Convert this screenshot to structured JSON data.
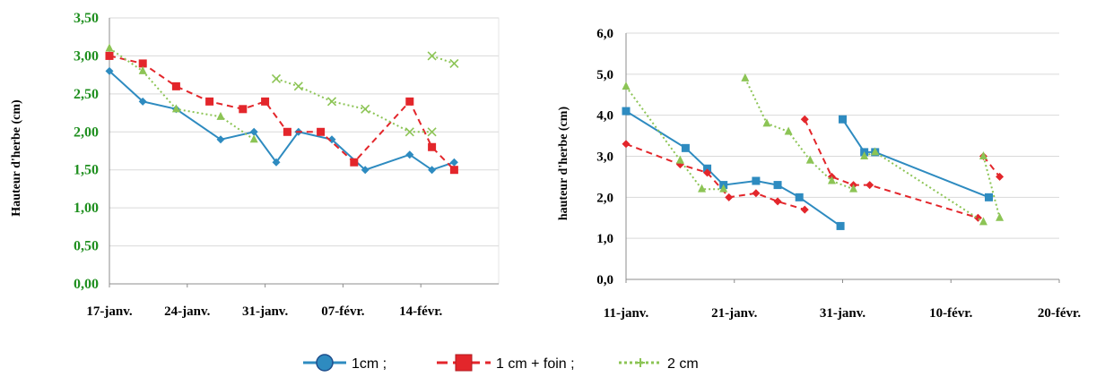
{
  "colors": {
    "blue": "#2e8bc0",
    "red": "#e3262b",
    "green": "#8cc455",
    "green_dark": "#3c9a3c",
    "grid": "#d9d9d9",
    "left_tick_color": "#1f8f1f"
  },
  "legend": {
    "items": [
      {
        "label": "1cm ;",
        "marker": "circle",
        "color": "#2e8bc0",
        "dash": "solid"
      },
      {
        "label": "1 cm + foin ;",
        "marker": "square",
        "color": "#e3262b",
        "dash": "dashed"
      },
      {
        "label": "2 cm",
        "marker": "plus",
        "color": "#8cc455",
        "dash": "dotted"
      }
    ]
  },
  "chart_data": [
    {
      "type": "line",
      "ylabel": "Hauteur d'herbe (cm)",
      "xlabel": "",
      "ylim": [
        0,
        3.5
      ],
      "y_ticks": [
        "0,00",
        "0,50",
        "1,00",
        "1,50",
        "2,00",
        "2,50",
        "3,00",
        "3,50"
      ],
      "x_ticks": [
        "17-janv.",
        "24-janv.",
        "31-janv.",
        "07-févr.",
        "14-févr."
      ],
      "x_tick_days": [
        0,
        7,
        14,
        21,
        28
      ],
      "xlim_days": [
        0,
        35
      ],
      "grid": "horizontal",
      "series": [
        {
          "key": "1cm",
          "color": "#2e8bc0",
          "dash": "solid",
          "marker": "diamond",
          "segments": [
            [
              [
                0,
                2.8
              ],
              [
                3,
                2.4
              ],
              [
                6,
                2.3
              ],
              [
                10,
                1.9
              ],
              [
                13,
                2.0
              ],
              [
                15,
                1.6
              ],
              [
                17,
                2.0
              ],
              [
                20,
                1.9
              ],
              [
                23,
                1.5
              ],
              [
                27,
                1.7
              ],
              [
                29,
                1.5
              ],
              [
                31,
                1.6
              ]
            ]
          ]
        },
        {
          "key": "1 cm + foin",
          "color": "#e3262b",
          "dash": "dashed",
          "marker": "square",
          "segments": [
            [
              [
                0,
                3.0
              ],
              [
                3,
                2.9
              ],
              [
                6,
                2.6
              ],
              [
                9,
                2.4
              ],
              [
                12,
                2.3
              ],
              [
                14,
                2.4
              ],
              [
                16,
                2.0
              ],
              [
                19,
                2.0
              ],
              [
                22,
                1.6
              ],
              [
                27,
                2.4
              ],
              [
                29,
                1.8
              ],
              [
                31,
                1.5
              ]
            ]
          ]
        },
        {
          "key": "2 cm",
          "color": "#8cc455",
          "dash": "dotted",
          "marker": "triangle",
          "segments": [
            [
              [
                0,
                3.1
              ],
              [
                3,
                2.8
              ],
              [
                6,
                2.3
              ],
              [
                10,
                2.2
              ],
              [
                13,
                1.9
              ]
            ]
          ]
        },
        {
          "key": "2 cm (x)",
          "color": "#8cc455",
          "dash": "dotted",
          "marker": "x",
          "segments": [
            [
              [
                15,
                2.7
              ],
              [
                17,
                2.6
              ],
              [
                20,
                2.4
              ],
              [
                23,
                2.3
              ],
              [
                27,
                2.0
              ],
              [
                29,
                2.0
              ]
            ],
            [
              [
                29,
                3.0
              ],
              [
                31,
                2.9
              ]
            ]
          ]
        }
      ]
    },
    {
      "type": "line",
      "ylabel": "hauteur d'herbe (cm)",
      "xlabel": "",
      "ylim": [
        0,
        6
      ],
      "y_ticks": [
        "0,0",
        "1,0",
        "2,0",
        "3,0",
        "4,0",
        "5,0",
        "6,0"
      ],
      "x_ticks": [
        "11-janv.",
        "21-janv.",
        "31-janv.",
        "10-févr.",
        "20-févr."
      ],
      "x_tick_days": [
        0,
        10,
        20,
        30,
        40
      ],
      "xlim_days": [
        0,
        40
      ],
      "grid": "horizontal",
      "series": [
        {
          "key": "1cm",
          "color": "#2e8bc0",
          "dash": "solid",
          "marker": "square",
          "segments": [
            [
              [
                0,
                4.1
              ],
              [
                5.5,
                3.2
              ],
              [
                7.5,
                2.7
              ],
              [
                9,
                2.3
              ],
              [
                12,
                2.4
              ],
              [
                14,
                2.3
              ],
              [
                16,
                2.0
              ],
              [
                19.8,
                1.3
              ]
            ],
            [
              [
                20,
                3.9
              ],
              [
                22,
                3.1
              ],
              [
                23,
                3.1
              ],
              [
                33.5,
                2.0
              ]
            ]
          ]
        },
        {
          "key": "1 cm + foin",
          "color": "#e3262b",
          "dash": "dashed",
          "marker": "diamond",
          "segments": [
            [
              [
                0,
                3.3
              ],
              [
                5,
                2.8
              ],
              [
                7.5,
                2.6
              ],
              [
                9.5,
                2.0
              ],
              [
                12,
                2.1
              ],
              [
                14,
                1.9
              ],
              [
                16.5,
                1.7
              ]
            ],
            [
              [
                16.5,
                3.9
              ],
              [
                19,
                2.5
              ],
              [
                21,
                2.3
              ],
              [
                22.5,
                2.3
              ],
              [
                32.5,
                1.5
              ]
            ],
            [
              [
                33,
                3.0
              ],
              [
                34.5,
                2.5
              ]
            ]
          ]
        },
        {
          "key": "2 cm",
          "color": "#8cc455",
          "dash": "dotted",
          "marker": "triangle",
          "segments": [
            [
              [
                0,
                4.7
              ],
              [
                5,
                2.9
              ],
              [
                7,
                2.2
              ],
              [
                9,
                2.2
              ]
            ],
            [
              [
                11,
                4.9
              ],
              [
                13,
                3.8
              ],
              [
                15,
                3.6
              ],
              [
                17,
                2.9
              ],
              [
                19,
                2.4
              ],
              [
                21,
                2.2
              ]
            ],
            [
              [
                22,
                3.0
              ],
              [
                23,
                3.1
              ],
              [
                33,
                1.4
              ]
            ],
            [
              [
                33,
                3.0
              ],
              [
                34.5,
                1.5
              ]
            ]
          ]
        }
      ]
    }
  ]
}
